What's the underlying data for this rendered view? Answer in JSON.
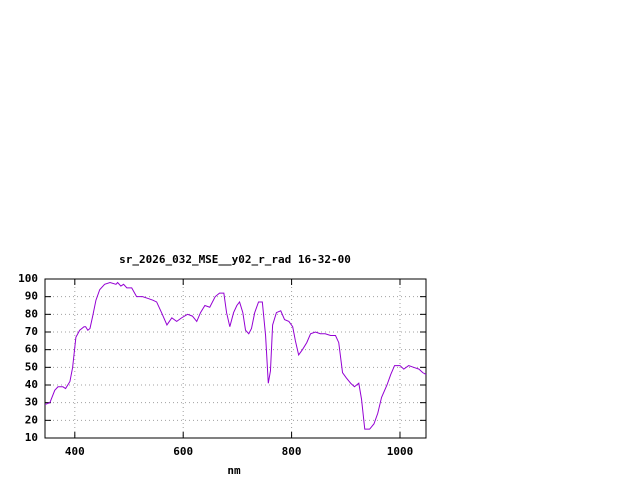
{
  "chart_data": {
    "type": "line",
    "title": "sr_2026_032_MSE__y02_r_rad 16-32-00",
    "x_label": "nm",
    "x": [
      345,
      354,
      363,
      369,
      378,
      383,
      391,
      396,
      402,
      409,
      417,
      420,
      424,
      428,
      433,
      439,
      446,
      455,
      465,
      476,
      479,
      485,
      490,
      496,
      505,
      514,
      525,
      535,
      544,
      551,
      560,
      570,
      579,
      588,
      597,
      608,
      617,
      625,
      632,
      640,
      649,
      659,
      667,
      675,
      680,
      686,
      693,
      699,
      704,
      710,
      715,
      721,
      726,
      732,
      739,
      746,
      752,
      757,
      761,
      765,
      772,
      780,
      787,
      795,
      802,
      807,
      813,
      820,
      828,
      835,
      844,
      853,
      862,
      872,
      881,
      887,
      894,
      901,
      909,
      916,
      924,
      929,
      935,
      944,
      952,
      959,
      966,
      976,
      983,
      990,
      1000,
      1007,
      1016,
      1025,
      1035,
      1042,
      1048
    ],
    "series": [
      {
        "color": "#9400d3",
        "values": [
          29,
          30,
          37,
          39,
          39,
          38,
          42,
          50,
          67,
          71,
          73,
          73,
          71,
          72,
          79,
          88,
          94,
          97,
          98,
          97,
          98,
          96,
          97,
          95,
          95,
          90,
          90,
          89,
          88,
          87,
          81,
          74,
          78,
          76,
          78,
          80,
          79,
          76,
          81,
          85,
          84,
          90,
          92,
          92,
          81,
          73,
          81,
          85,
          87,
          81,
          71,
          69,
          72,
          81,
          87,
          87,
          68,
          41,
          48,
          74,
          81,
          82,
          77,
          76,
          73,
          65,
          57,
          60,
          64,
          69,
          70,
          69,
          69,
          68,
          68,
          64,
          47,
          44,
          41,
          39,
          41,
          32,
          15,
          15,
          18,
          24,
          33,
          40,
          46,
          51,
          51,
          49,
          51,
          50,
          49,
          47,
          46
        ]
      }
    ],
    "xlim": [
      345,
      1048
    ],
    "ylim": [
      10,
      100
    ],
    "xticks": [
      400,
      600,
      800,
      1000
    ],
    "yticks": [
      10,
      20,
      30,
      40,
      50,
      60,
      70,
      80,
      90,
      100
    ],
    "grid": true
  }
}
